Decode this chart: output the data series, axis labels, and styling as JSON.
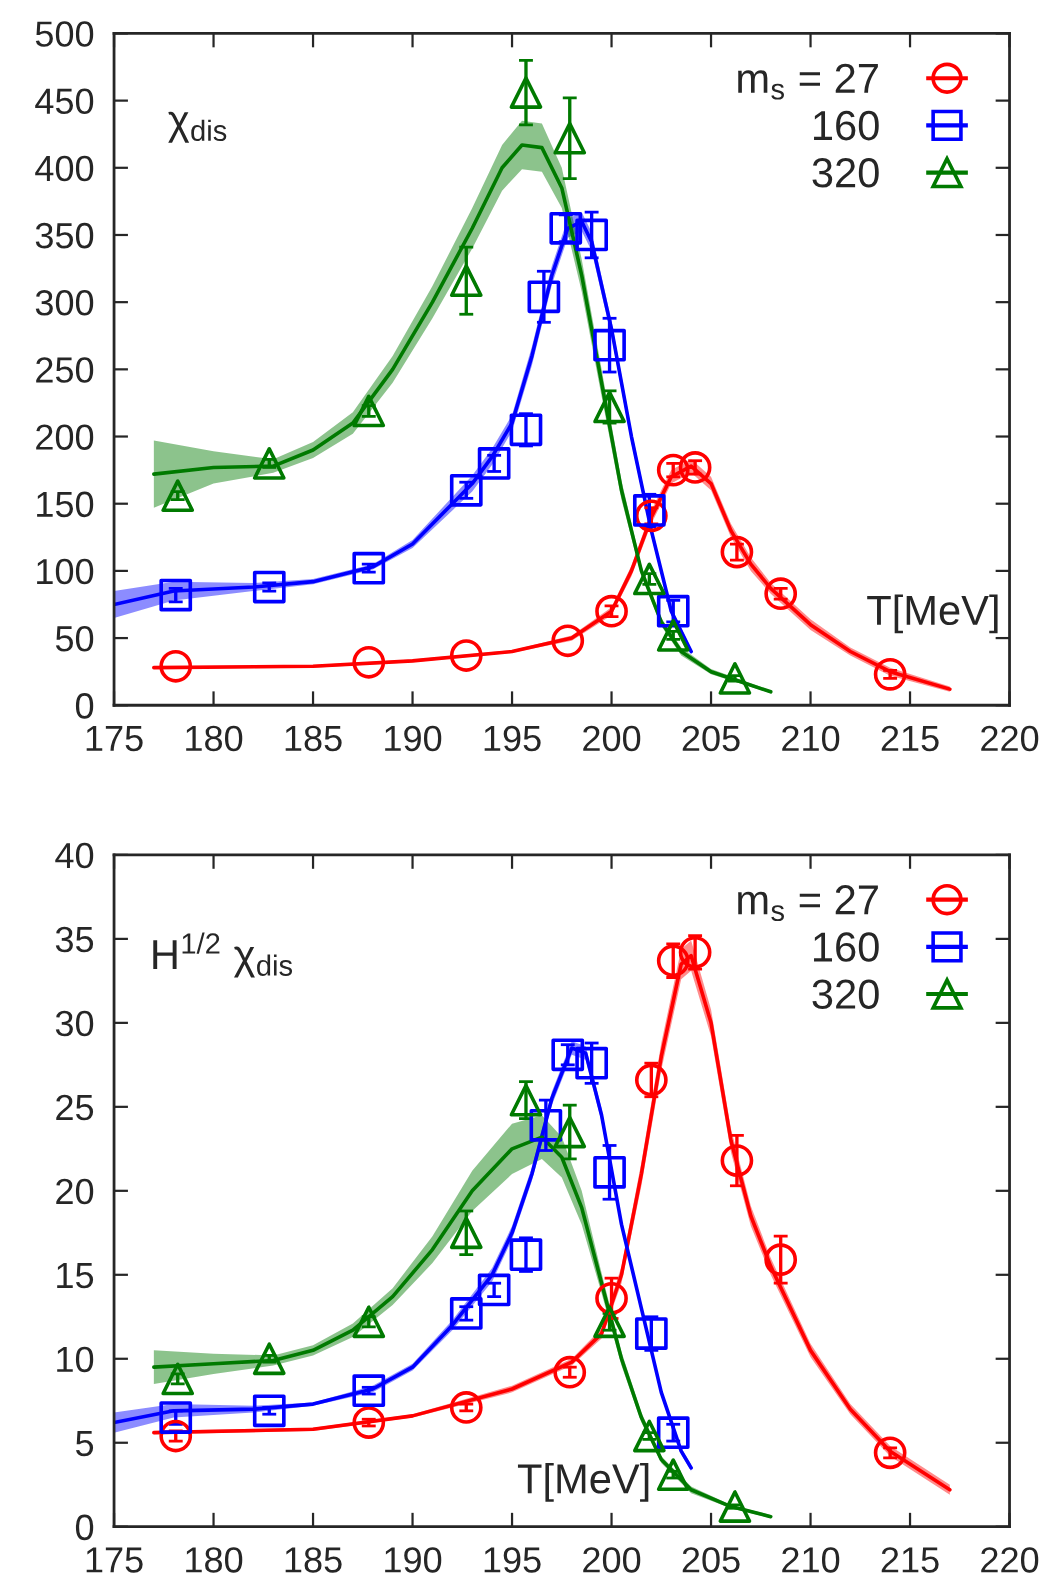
{
  "chart_data": [
    {
      "type": "scatter",
      "ylabel": "χ$_{dis}$",
      "xlabel": "T[MeV]",
      "xlim": [
        175,
        220
      ],
      "xticks": [
        175,
        180,
        185,
        190,
        195,
        200,
        205,
        210,
        215,
        220
      ],
      "ylim": [
        0,
        500
      ],
      "yticks": [
        0,
        50,
        100,
        150,
        200,
        250,
        300,
        350,
        400,
        450,
        500
      ],
      "legend": "top right",
      "grid": false,
      "series": [
        {
          "type": "line",
          "color": "#ff0000",
          "marker": "none",
          "line_style": "solid",
          "x": [
            177,
            185,
            190,
            195,
            198,
            200,
            201,
            202,
            203,
            204,
            205,
            206,
            207,
            208,
            210,
            212,
            214,
            217
          ],
          "values": [
            28,
            29,
            33,
            40,
            50,
            70,
            100,
            140,
            170,
            178,
            165,
            130,
            105,
            87,
            60,
            40,
            25,
            12
          ],
          "lower": [
            27,
            28,
            32,
            39,
            48,
            67,
            96,
            135,
            165,
            173,
            160,
            125,
            100,
            83,
            56,
            37,
            22,
            10
          ],
          "upper": [
            29,
            30,
            34,
            41,
            52,
            73,
            104,
            145,
            175,
            183,
            170,
            135,
            110,
            91,
            64,
            43,
            28,
            14
          ]
        },
        {
          "type": "line",
          "color": "#0000ff",
          "marker": "none",
          "line_style": "solid",
          "x": [
            175,
            178,
            182,
            185,
            188,
            190,
            192,
            193,
            194,
            195,
            196,
            197,
            197.8,
            198.5,
            199,
            200,
            201,
            202,
            203,
            204
          ],
          "values": [
            75,
            85,
            88,
            92,
            103,
            120,
            150,
            165,
            185,
            210,
            260,
            320,
            355,
            360,
            345,
            280,
            200,
            130,
            70,
            40
          ],
          "lower": [
            65,
            78,
            85,
            90,
            101,
            117,
            145,
            159,
            179,
            204,
            253,
            313,
            348,
            353,
            338,
            274,
            195,
            126,
            67,
            38
          ],
          "upper": [
            85,
            92,
            91,
            94,
            105,
            123,
            155,
            171,
            191,
            216,
            267,
            327,
            362,
            367,
            352,
            286,
            205,
            134,
            73,
            42
          ]
        },
        {
          "type": "line",
          "color": "#007a00",
          "marker": "none",
          "line_style": "solid",
          "x": [
            177,
            180,
            183,
            185,
            187,
            189,
            191,
            193,
            194.5,
            195.5,
            196.5,
            197.5,
            198.5,
            199.5,
            200.5,
            201.5,
            202.5,
            203.5,
            205,
            208
          ],
          "values": [
            172,
            177,
            178,
            190,
            210,
            250,
            300,
            355,
            400,
            417,
            415,
            385,
            320,
            240,
            160,
            100,
            62,
            40,
            25,
            10
          ],
          "lower": [
            147,
            165,
            173,
            184,
            202,
            240,
            288,
            340,
            383,
            399,
            397,
            370,
            308,
            230,
            153,
            96,
            59,
            37,
            23,
            9
          ],
          "upper": [
            197,
            189,
            183,
            196,
            218,
            260,
            312,
            370,
            417,
            435,
            433,
            400,
            332,
            250,
            167,
            104,
            65,
            43,
            27,
            11
          ]
        },
        {
          "name": "m$_{s}$ = 27",
          "color": "#ff0000",
          "marker": "circle",
          "x": [
            178.1,
            187.8,
            192.7,
            197.8,
            200.0,
            202.0,
            203.1,
            204.2,
            206.3,
            208.5,
            214.0
          ],
          "values": [
            29,
            32,
            37,
            48,
            70,
            141,
            175,
            177,
            114,
            83,
            23
          ],
          "errors": [
            null,
            null,
            null,
            null,
            4,
            6,
            5,
            5,
            6,
            4,
            3
          ]
        },
        {
          "name": "160",
          "color": "#0000ff",
          "marker": "square",
          "x": [
            178.1,
            182.8,
            187.8,
            192.7,
            194.1,
            195.7,
            196.6,
            197.7,
            199.0,
            199.9,
            201.9,
            203.1
          ],
          "values": [
            82,
            88,
            102,
            160,
            180,
            205,
            304,
            355,
            350,
            268,
            145,
            70
          ],
          "errors": [
            5,
            3,
            3,
            6,
            6,
            12,
            19,
            10,
            17,
            20,
            12,
            8
          ]
        },
        {
          "name": "320",
          "color": "#007a00",
          "marker": "triangle",
          "x": [
            178.2,
            182.8,
            187.8,
            192.7,
            195.7,
            197.9,
            199.9,
            201.9,
            203.1,
            206.2
          ],
          "values": [
            156,
            180,
            219,
            316,
            456,
            422,
            222,
            94,
            52,
            20
          ],
          "errors": [
            3,
            3,
            4,
            25,
            24,
            30,
            12,
            4,
            3,
            2
          ]
        }
      ]
    },
    {
      "type": "scatter",
      "ylabel": "H$^{1/2}$ χ$_{dis}$",
      "xlabel": "T[MeV]",
      "xlim": [
        175,
        220
      ],
      "xticks": [
        175,
        180,
        185,
        190,
        195,
        200,
        205,
        210,
        215,
        220
      ],
      "ylim": [
        0,
        40
      ],
      "yticks": [
        0,
        5,
        10,
        15,
        20,
        25,
        30,
        35,
        40
      ],
      "legend": "top right",
      "grid": false,
      "series": [
        {
          "type": "line",
          "color": "#ff0000",
          "marker": "none",
          "line_style": "solid",
          "x": [
            177,
            185,
            190,
            195,
            198,
            199.5,
            200.5,
            201.5,
            202.5,
            203.5,
            204,
            205,
            206,
            207,
            208,
            210,
            212,
            214,
            217
          ],
          "values": [
            5.6,
            5.8,
            6.6,
            8.2,
            9.8,
            11.5,
            15,
            21,
            28,
            33.5,
            34,
            30,
            23,
            18.5,
            15.5,
            10.5,
            7,
            4.5,
            2.2
          ],
          "lower": [
            5.5,
            5.7,
            6.5,
            8.0,
            9.6,
            11.2,
            14.5,
            20.3,
            27.2,
            32.6,
            33.1,
            29.2,
            22.3,
            17.9,
            15.0,
            10.1,
            6.7,
            4.2,
            1.9
          ],
          "upper": [
            5.7,
            5.9,
            6.7,
            8.4,
            10.0,
            11.8,
            15.5,
            21.7,
            28.8,
            34.4,
            34.9,
            30.8,
            23.7,
            19.1,
            16.0,
            10.9,
            7.3,
            4.8,
            2.5
          ]
        },
        {
          "type": "line",
          "color": "#0000ff",
          "marker": "none",
          "line_style": "solid",
          "x": [
            175,
            178,
            182,
            185,
            188,
            190,
            192,
            194,
            195,
            196,
            197,
            198,
            198.7,
            199.5,
            200.5,
            201.5,
            202.5,
            203.5,
            204
          ],
          "values": [
            6.2,
            6.9,
            7.0,
            7.3,
            8.2,
            9.5,
            12,
            15,
            17.5,
            21,
            25.5,
            28.5,
            28.2,
            24.5,
            18,
            13,
            8,
            4.5,
            3.5
          ],
          "lower": [
            5.6,
            6.5,
            6.8,
            7.2,
            8.0,
            9.3,
            11.7,
            14.6,
            17.1,
            20.6,
            25.1,
            28.1,
            27.8,
            24.1,
            17.7,
            12.8,
            7.8,
            4.3,
            3.3
          ],
          "upper": [
            6.8,
            7.3,
            7.2,
            7.4,
            8.4,
            9.7,
            12.3,
            15.4,
            17.9,
            21.4,
            25.9,
            28.9,
            28.6,
            24.9,
            18.3,
            13.2,
            8.2,
            4.7,
            3.7
          ]
        },
        {
          "type": "line",
          "color": "#007a00",
          "marker": "none",
          "line_style": "solid",
          "x": [
            177,
            180,
            183,
            185,
            187,
            189,
            191,
            193,
            195,
            196.5,
            197.5,
            198.5,
            199.5,
            200.5,
            201.5,
            202.5,
            204,
            206,
            208
          ],
          "values": [
            9.5,
            9.7,
            9.9,
            10.5,
            11.7,
            13.7,
            16.5,
            20,
            22.5,
            23.2,
            22,
            19,
            14.5,
            10,
            6.5,
            4,
            2.2,
            1.2,
            0.6
          ],
          "lower": [
            8.5,
            9.1,
            9.6,
            10.2,
            11.3,
            13.2,
            15.7,
            18.8,
            21.0,
            21.9,
            20.8,
            18.0,
            13.9,
            9.6,
            6.2,
            3.8,
            2.0,
            1.1,
            0.5
          ],
          "upper": [
            10.5,
            10.3,
            10.2,
            10.8,
            12.1,
            14.2,
            17.3,
            21.2,
            24.0,
            24.5,
            23.2,
            20.0,
            15.1,
            10.4,
            6.8,
            4.2,
            2.4,
            1.3,
            0.7
          ]
        },
        {
          "name": "m$_{s}$ = 27",
          "color": "#ff0000",
          "marker": "circle",
          "x": [
            178.1,
            187.8,
            192.7,
            197.9,
            200.0,
            202.0,
            203.1,
            204.2,
            206.3,
            208.5,
            214.0
          ],
          "values": [
            5.4,
            6.2,
            7.1,
            9.2,
            13.6,
            26.6,
            33.7,
            34.2,
            21.8,
            15.9,
            4.4
          ],
          "errors": [
            0.3,
            0.2,
            0.2,
            0.3,
            1.2,
            1.0,
            1.0,
            1.0,
            1.5,
            1.4,
            0.3
          ]
        },
        {
          "name": "160",
          "color": "#0000ff",
          "marker": "square",
          "x": [
            178.1,
            182.8,
            187.8,
            192.7,
            194.1,
            195.7,
            196.7,
            197.8,
            199.0,
            199.9,
            202.0,
            203.1
          ],
          "values": [
            6.5,
            6.9,
            8.1,
            12.7,
            14.1,
            16.2,
            23.9,
            28.1,
            27.6,
            21.1,
            11.5,
            5.6
          ],
          "errors": [
            0.4,
            0.2,
            0.2,
            0.4,
            0.4,
            1.0,
            1.5,
            0.6,
            1.2,
            1.6,
            1.0,
            0.5
          ]
        },
        {
          "name": "320",
          "color": "#007a00",
          "marker": "triangle",
          "x": [
            178.2,
            182.8,
            187.8,
            192.7,
            195.7,
            197.9,
            199.9,
            201.9,
            203.1,
            206.2
          ],
          "values": [
            8.8,
            10.0,
            12.2,
            17.5,
            25.4,
            23.5,
            12.2,
            5.4,
            3.1,
            1.2
          ],
          "errors": [
            0.3,
            0.2,
            0.3,
            1.3,
            1.1,
            1.6,
            0.5,
            0.2,
            0.2,
            0.1
          ]
        }
      ]
    }
  ]
}
